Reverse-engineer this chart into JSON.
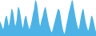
{
  "values": [
    55,
    52,
    48,
    45,
    50,
    58,
    62,
    55,
    48,
    52,
    60,
    70,
    65,
    55,
    48,
    52,
    58,
    72,
    68,
    60,
    52,
    46,
    50,
    58,
    62,
    55,
    50,
    45,
    48,
    52,
    58,
    65,
    70,
    80,
    75,
    65,
    55,
    48,
    52,
    58,
    62,
    68,
    72,
    65,
    58,
    52,
    48,
    44,
    42,
    45,
    50,
    55,
    60,
    65,
    70,
    68,
    60,
    52,
    46,
    42,
    40,
    45,
    52,
    58,
    65,
    70,
    75,
    80,
    72,
    65,
    58,
    52,
    48,
    45,
    50,
    58,
    65,
    70,
    62,
    55,
    50,
    46,
    44,
    48,
    55,
    62,
    58,
    52,
    46,
    42
  ],
  "line_color": "#4db3e6",
  "fill_color": "#4db3e6",
  "fill_alpha": 1.0,
  "background_color": "#ffffff",
  "linewidth": 0.9
}
